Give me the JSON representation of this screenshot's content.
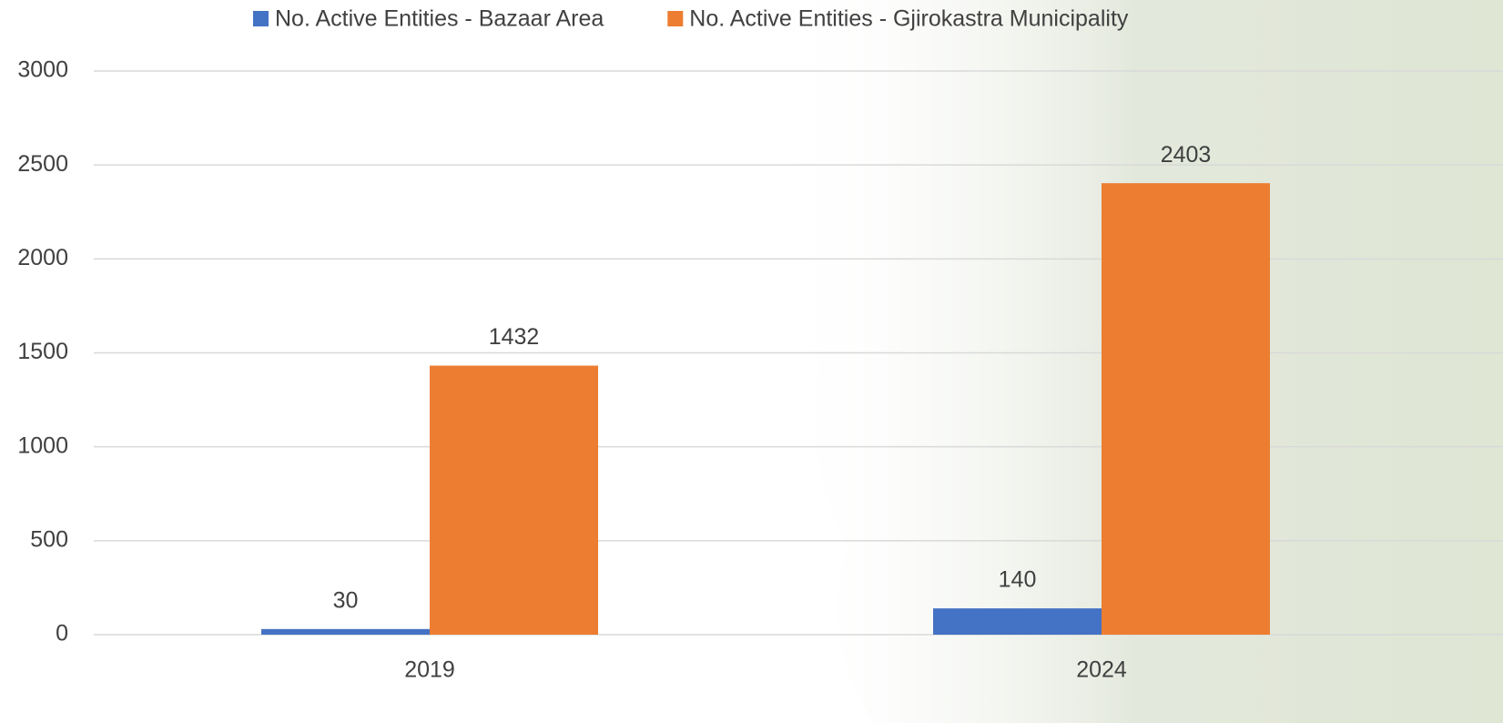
{
  "chart_data": {
    "type": "bar",
    "categories": [
      "2019",
      "2024"
    ],
    "series": [
      {
        "name": "No. Active Entities - Bazaar Area",
        "color": "#4472c4",
        "values": [
          30,
          140
        ]
      },
      {
        "name": "No. Active Entities - Gjirokastra Municipality",
        "color": "#ed7d31",
        "values": [
          1432,
          2403
        ]
      }
    ],
    "ylim": [
      0,
      3000
    ],
    "yticks": [
      0,
      500,
      1000,
      1500,
      2000,
      2500,
      3000
    ],
    "grid": true
  }
}
